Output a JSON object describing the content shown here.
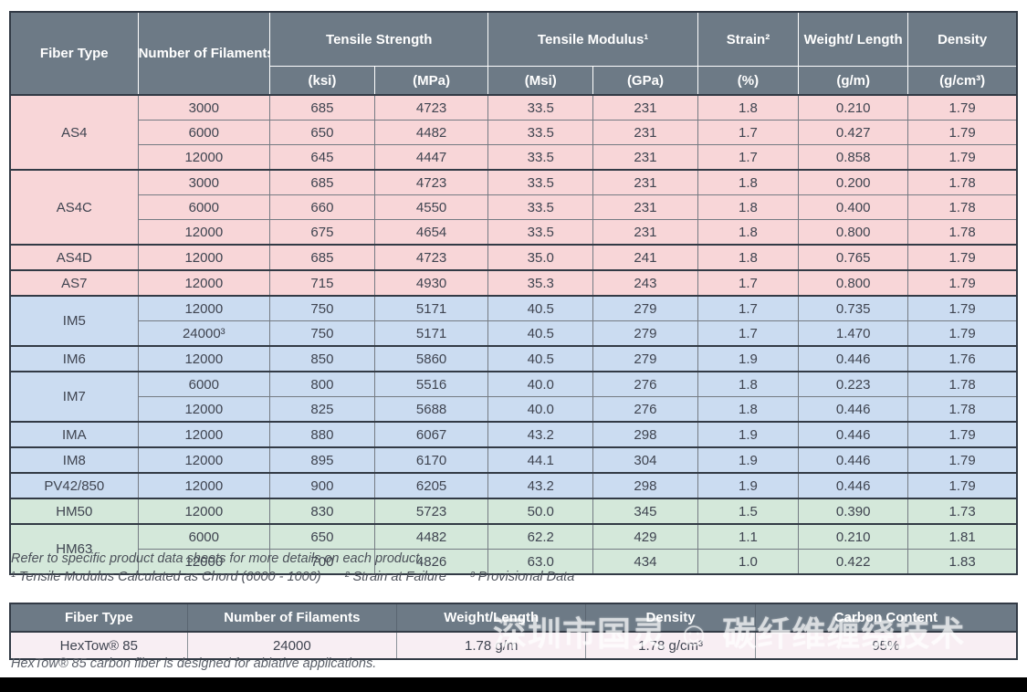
{
  "colors": {
    "header_bg": "#6d7a86",
    "pink": "#f8d6d8",
    "blue": "#cbdcf1",
    "green": "#d4e8da",
    "bottom_row": "#f8eef3",
    "border_dark": "#323a45",
    "border_mid": "#757b83"
  },
  "main_table": {
    "header": {
      "fiber_type": "Fiber Type",
      "filaments": "Number of Filaments",
      "tensile_strength": "Tensile Strength",
      "tensile_modulus": "Tensile Modulus¹",
      "strain": "Strain²",
      "weight_length": "Weight/ Length",
      "density": "Density",
      "units": [
        "(ksi)",
        "(MPa)",
        "(Msi)",
        "(GPa)",
        "(%)",
        "(g/m)",
        "(g/cm³)"
      ]
    },
    "groups": [
      {
        "fiber": "AS4",
        "color": "pink",
        "rows": [
          [
            "3000",
            "685",
            "4723",
            "33.5",
            "231",
            "1.8",
            "0.210",
            "1.79"
          ],
          [
            "6000",
            "650",
            "4482",
            "33.5",
            "231",
            "1.7",
            "0.427",
            "1.79"
          ],
          [
            "12000",
            "645",
            "4447",
            "33.5",
            "231",
            "1.7",
            "0.858",
            "1.79"
          ]
        ]
      },
      {
        "fiber": "AS4C",
        "color": "pink",
        "rows": [
          [
            "3000",
            "685",
            "4723",
            "33.5",
            "231",
            "1.8",
            "0.200",
            "1.78"
          ],
          [
            "6000",
            "660",
            "4550",
            "33.5",
            "231",
            "1.8",
            "0.400",
            "1.78"
          ],
          [
            "12000",
            "675",
            "4654",
            "33.5",
            "231",
            "1.8",
            "0.800",
            "1.78"
          ]
        ]
      },
      {
        "fiber": "AS4D",
        "color": "pink",
        "rows": [
          [
            "12000",
            "685",
            "4723",
            "35.0",
            "241",
            "1.8",
            "0.765",
            "1.79"
          ]
        ]
      },
      {
        "fiber": "AS7",
        "color": "pink",
        "rows": [
          [
            "12000",
            "715",
            "4930",
            "35.3",
            "243",
            "1.7",
            "0.800",
            "1.79"
          ]
        ]
      },
      {
        "fiber": "IM5",
        "color": "blue",
        "rows": [
          [
            "12000",
            "750",
            "5171",
            "40.5",
            "279",
            "1.7",
            "0.735",
            "1.79"
          ],
          [
            "24000³",
            "750",
            "5171",
            "40.5",
            "279",
            "1.7",
            "1.470",
            "1.79"
          ]
        ]
      },
      {
        "fiber": "IM6",
        "color": "blue",
        "rows": [
          [
            "12000",
            "850",
            "5860",
            "40.5",
            "279",
            "1.9",
            "0.446",
            "1.76"
          ]
        ]
      },
      {
        "fiber": "IM7",
        "color": "blue",
        "rows": [
          [
            "6000",
            "800",
            "5516",
            "40.0",
            "276",
            "1.8",
            "0.223",
            "1.78"
          ],
          [
            "12000",
            "825",
            "5688",
            "40.0",
            "276",
            "1.8",
            "0.446",
            "1.78"
          ]
        ]
      },
      {
        "fiber": "IMA",
        "color": "blue",
        "rows": [
          [
            "12000",
            "880",
            "6067",
            "43.2",
            "298",
            "1.9",
            "0.446",
            "1.79"
          ]
        ]
      },
      {
        "fiber": "IM8",
        "color": "blue",
        "rows": [
          [
            "12000",
            "895",
            "6170",
            "44.1",
            "304",
            "1.9",
            "0.446",
            "1.79"
          ]
        ]
      },
      {
        "fiber": "PV42/850",
        "color": "blue",
        "rows": [
          [
            "12000",
            "900",
            "6205",
            "43.2",
            "298",
            "1.9",
            "0.446",
            "1.79"
          ]
        ]
      },
      {
        "fiber": "HM50",
        "color": "green",
        "rows": [
          [
            "12000",
            "830",
            "5723",
            "50.0",
            "345",
            "1.5",
            "0.390",
            "1.73"
          ]
        ]
      },
      {
        "fiber": "HM63",
        "color": "green",
        "rows": [
          [
            "6000",
            "650",
            "4482",
            "62.2",
            "429",
            "1.1",
            "0.210",
            "1.81"
          ],
          [
            "12000",
            "700",
            "4826",
            "63.0",
            "434",
            "1.0",
            "0.422",
            "1.83"
          ]
        ]
      }
    ]
  },
  "footnotes": {
    "line1": "Refer to specific product data sheets for more details on each product.",
    "notes": [
      "¹ Tensile Modulus Calculated as Chord (6000 - 1000)",
      "² Strain at Failure",
      "³ Provisional Data"
    ]
  },
  "bottom_table": {
    "headers": [
      "Fiber Type",
      "Number of Filaments",
      "Weight/Length",
      "Density",
      "Carbon Content"
    ],
    "row": [
      "HexTow® 85",
      "24000",
      "1.78 g/m",
      "1.78 g/cm³",
      "95%"
    ]
  },
  "caption": "HexTow® 85 carbon fiber is designed for ablative applications.",
  "watermark": "深圳市国灵 ☺ 碳纤维缠绕技术"
}
